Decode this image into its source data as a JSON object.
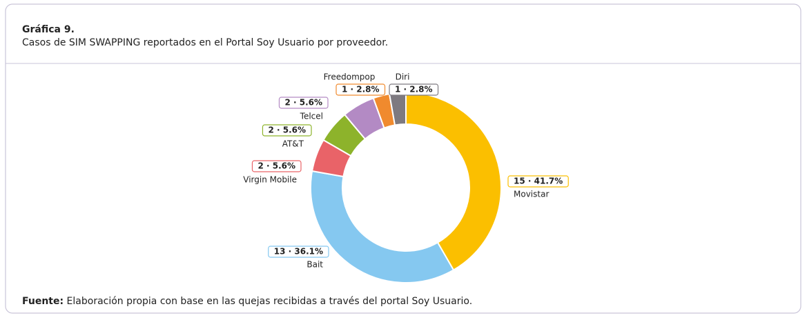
{
  "chart_data": {
    "type": "donut",
    "title": "Gráfica 9.",
    "subtitle": "Casos de SIM SWAPPING reportados en el Portal Soy Usuario por proveedor.",
    "categories": [
      "Movistar",
      "Bait",
      "Virgin Mobile",
      "AT&T",
      "Telcel",
      "Freedompop",
      "Diri"
    ],
    "values": [
      15,
      13,
      2,
      2,
      2,
      1,
      1
    ],
    "value_labels": [
      "15 · 41.7%",
      "13 · 36.1%",
      "2 · 5.6%",
      "2 · 5.6%",
      "2 · 5.6%",
      "1 · 2.8%",
      "1 · 2.8%"
    ],
    "colors": [
      "#fbbf00",
      "#85c8f0",
      "#e96368",
      "#8db32b",
      "#b38ac4",
      "#f08a2e",
      "#7e7a80"
    ],
    "source_label": "Fuente:",
    "source": "Elaboración propia con base en las quejas recibidas a través del portal Soy Usuario."
  }
}
